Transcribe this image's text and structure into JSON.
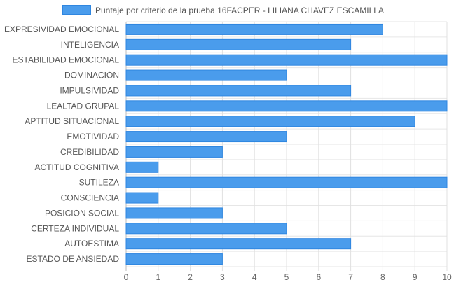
{
  "chart_data": {
    "type": "bar",
    "orientation": "horizontal",
    "legend": {
      "position": "top",
      "label": "Puntaje por criterio de la prueba 16FACPER - LILIANA CHAVEZ ESCAMILLA"
    },
    "series": [
      {
        "name": "Puntaje por criterio de la prueba 16FACPER - LILIANA CHAVEZ ESCAMILLA",
        "color": "#4a9cec",
        "border_color": "#2f86e0",
        "values": [
          8,
          7,
          10,
          5,
          7,
          10,
          9,
          5,
          3,
          1,
          10,
          1,
          3,
          5,
          7,
          3
        ]
      }
    ],
    "categories": [
      "EXPRESIVIDAD EMOCIONAL",
      "INTELIGENCIA",
      "ESTABILIDAD EMOCIONAL",
      "DOMINACIÓN",
      "IMPULSIVIDAD",
      "LEALTAD GRUPAL",
      "APTITUD SITUACIONAL",
      "EMOTIVIDAD",
      "CREDIBILIDAD",
      "ACTITUD COGNITIVA",
      "SUTILEZA",
      "CONSCIENCIA",
      "POSICIÓN SOCIAL",
      "CERTEZA INDIVIDUAL",
      "AUTOESTIMA",
      "ESTADO DE ANSIEDAD"
    ],
    "xlim": [
      0,
      10
    ],
    "x_ticks": [
      "0",
      "1",
      "2",
      "3",
      "4",
      "5",
      "6",
      "7",
      "8",
      "9",
      "10"
    ],
    "grid": true
  }
}
